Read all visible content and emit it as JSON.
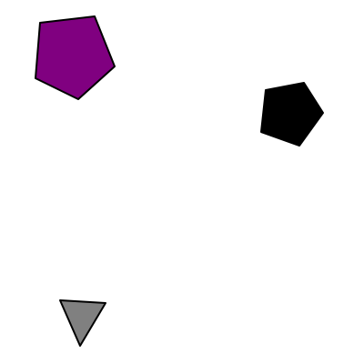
{
  "canvas": {
    "background": "#ffffff"
  },
  "shapes": [
    {
      "name": "purple-pentagon",
      "kind": "pentagon",
      "fill": "#800080",
      "stroke": "#000000"
    },
    {
      "name": "black-pentagon",
      "kind": "pentagon",
      "fill": "#000000",
      "stroke": "#000000"
    },
    {
      "name": "gray-triangle",
      "kind": "triangle",
      "fill": "#808080",
      "stroke": "#000000"
    }
  ]
}
